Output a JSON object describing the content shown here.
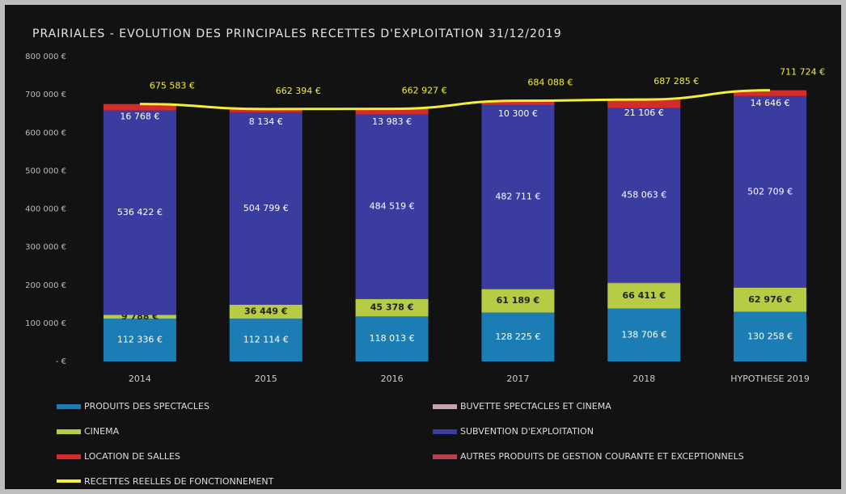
{
  "chart_data": {
    "type": "bar",
    "stacked": true,
    "title": "PRAIRIALES - EVOLUTION DES PRINCIPALES RECETTES D'EXPLOITATION 31/12/2019",
    "categories": [
      "2014",
      "2015",
      "2016",
      "2017",
      "2018",
      "HYPOTHESE 2019"
    ],
    "ylim": [
      0,
      800000
    ],
    "yticks": [
      {
        "value": 0,
        "label": "- €"
      },
      {
        "value": 100000,
        "label": "100 000 €"
      },
      {
        "value": 200000,
        "label": "200 000 €"
      },
      {
        "value": 300000,
        "label": "300 000 €"
      },
      {
        "value": 400000,
        "label": "400 000 €"
      },
      {
        "value": 500000,
        "label": "500 000 €"
      },
      {
        "value": 600000,
        "label": "600 000 €"
      },
      {
        "value": 700000,
        "label": "700 000 €"
      },
      {
        "value": 800000,
        "label": "800 000 €"
      }
    ],
    "series": [
      {
        "name": "PRODUITS DES SPECTACLES",
        "color": "#1b7db3",
        "values": [
          112336,
          112114,
          118013,
          128225,
          138706,
          130258
        ],
        "value_labels": [
          "112 336 €",
          "112 114 €",
          "118 013 €",
          "128 225 €",
          "138 706 €",
          "130 258 €"
        ]
      },
      {
        "name": "CINEMA",
        "color": "#b7cc45",
        "values": [
          9788,
          36449,
          45378,
          61189,
          66411,
          62976
        ],
        "value_labels": [
          "9 788 €",
          "36 449 €",
          "45 378 €",
          "61 189 €",
          "66 411 €",
          "62 976 €"
        ]
      },
      {
        "name": "BUVETTE SPECTACLES ET CINEMA",
        "color": "#c9a3ab",
        "values": [
          100,
          400,
          500,
          800,
          1500,
          500
        ]
      },
      {
        "name": "SUBVENTION D'EXPLOITATION",
        "color": "#3b3ca0",
        "values": [
          536422,
          504799,
          484519,
          482711,
          458063,
          502709
        ],
        "value_labels": [
          "536 422 €",
          "504 799 €",
          "484 519 €",
          "482 711 €",
          "458 063 €",
          "502 709 €"
        ]
      },
      {
        "name": "LOCATION DE SALLES",
        "color": "#d42b2b",
        "values": [
          16768,
          8134,
          13983,
          10300,
          21106,
          14646
        ],
        "value_labels": [
          "16 768 €",
          "8 134 €",
          "13 983 €",
          "10 300 €",
          "21 106 €",
          "14 646 €"
        ]
      },
      {
        "name": "AUTRES PRODUITS DE GESTION COURANTE ET EXCEPTIONNELS",
        "color": "#b8404f",
        "values": [
          169,
          498,
          534,
          863,
          1499,
          635
        ]
      },
      {
        "name": "RECETTES REELLES DE FONCTIONNEMENT",
        "color": "#f3ee3c",
        "type": "line",
        "values": [
          675583,
          662394,
          662927,
          684088,
          687285,
          711724
        ],
        "value_labels": [
          "675 583 €",
          "662 394 €",
          "662 927 €",
          "684 088 €",
          "687 285 €",
          "711 724 €"
        ]
      }
    ]
  }
}
